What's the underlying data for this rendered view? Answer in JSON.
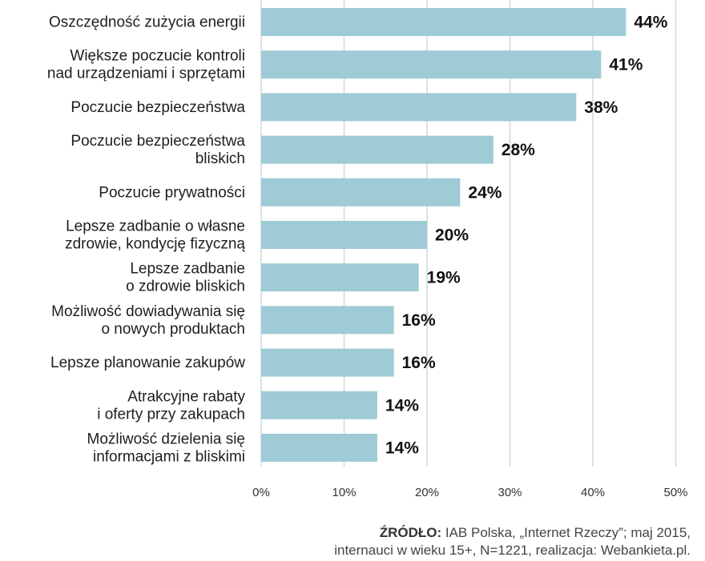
{
  "chart_data": {
    "type": "bar",
    "orientation": "horizontal",
    "categories": [
      [
        "Oszczędność zużycia energii"
      ],
      [
        "Większe poczucie kontroli",
        "nad urządzeniami i sprzętami"
      ],
      [
        "Poczucie bezpieczeństwa"
      ],
      [
        "Poczucie bezpieczeństwa",
        "bliskich"
      ],
      [
        "Poczucie prywatności"
      ],
      [
        "Lepsze zadbanie o własne",
        "zdrowie, kondycję fizyczną"
      ],
      [
        "Lepsze zadbanie",
        "o zdrowie bliskich"
      ],
      [
        "Możliwość dowiadywania się",
        "o nowych produktach"
      ],
      [
        "Lepsze planowanie zakupów"
      ],
      [
        "Atrakcyjne rabaty",
        "i oferty przy zakupach"
      ],
      [
        "Możliwość dzielenia się",
        "informacjami z bliskimi"
      ]
    ],
    "values": [
      44,
      41,
      38,
      28,
      24,
      20,
      19,
      16,
      16,
      14,
      14
    ],
    "value_labels": [
      "44%",
      "41%",
      "38%",
      "28%",
      "24%",
      "20%",
      "19%",
      "16%",
      "16%",
      "14%",
      "14%"
    ],
    "xlim": [
      0,
      50
    ],
    "xticks": [
      "0%",
      "10%",
      "20%",
      "30%",
      "40%",
      "50%"
    ],
    "grid": true,
    "bar_color": "#9ecbd6",
    "grid_color": "#cfd8dc"
  },
  "source": {
    "label": "ŹRÓDŁO:",
    "line1": "IAB Polska, „Internet Rzeczy”; maj 2015,",
    "line2": "internauci w wieku 15+, N=1221, realizacja: Webankieta.pl."
  }
}
